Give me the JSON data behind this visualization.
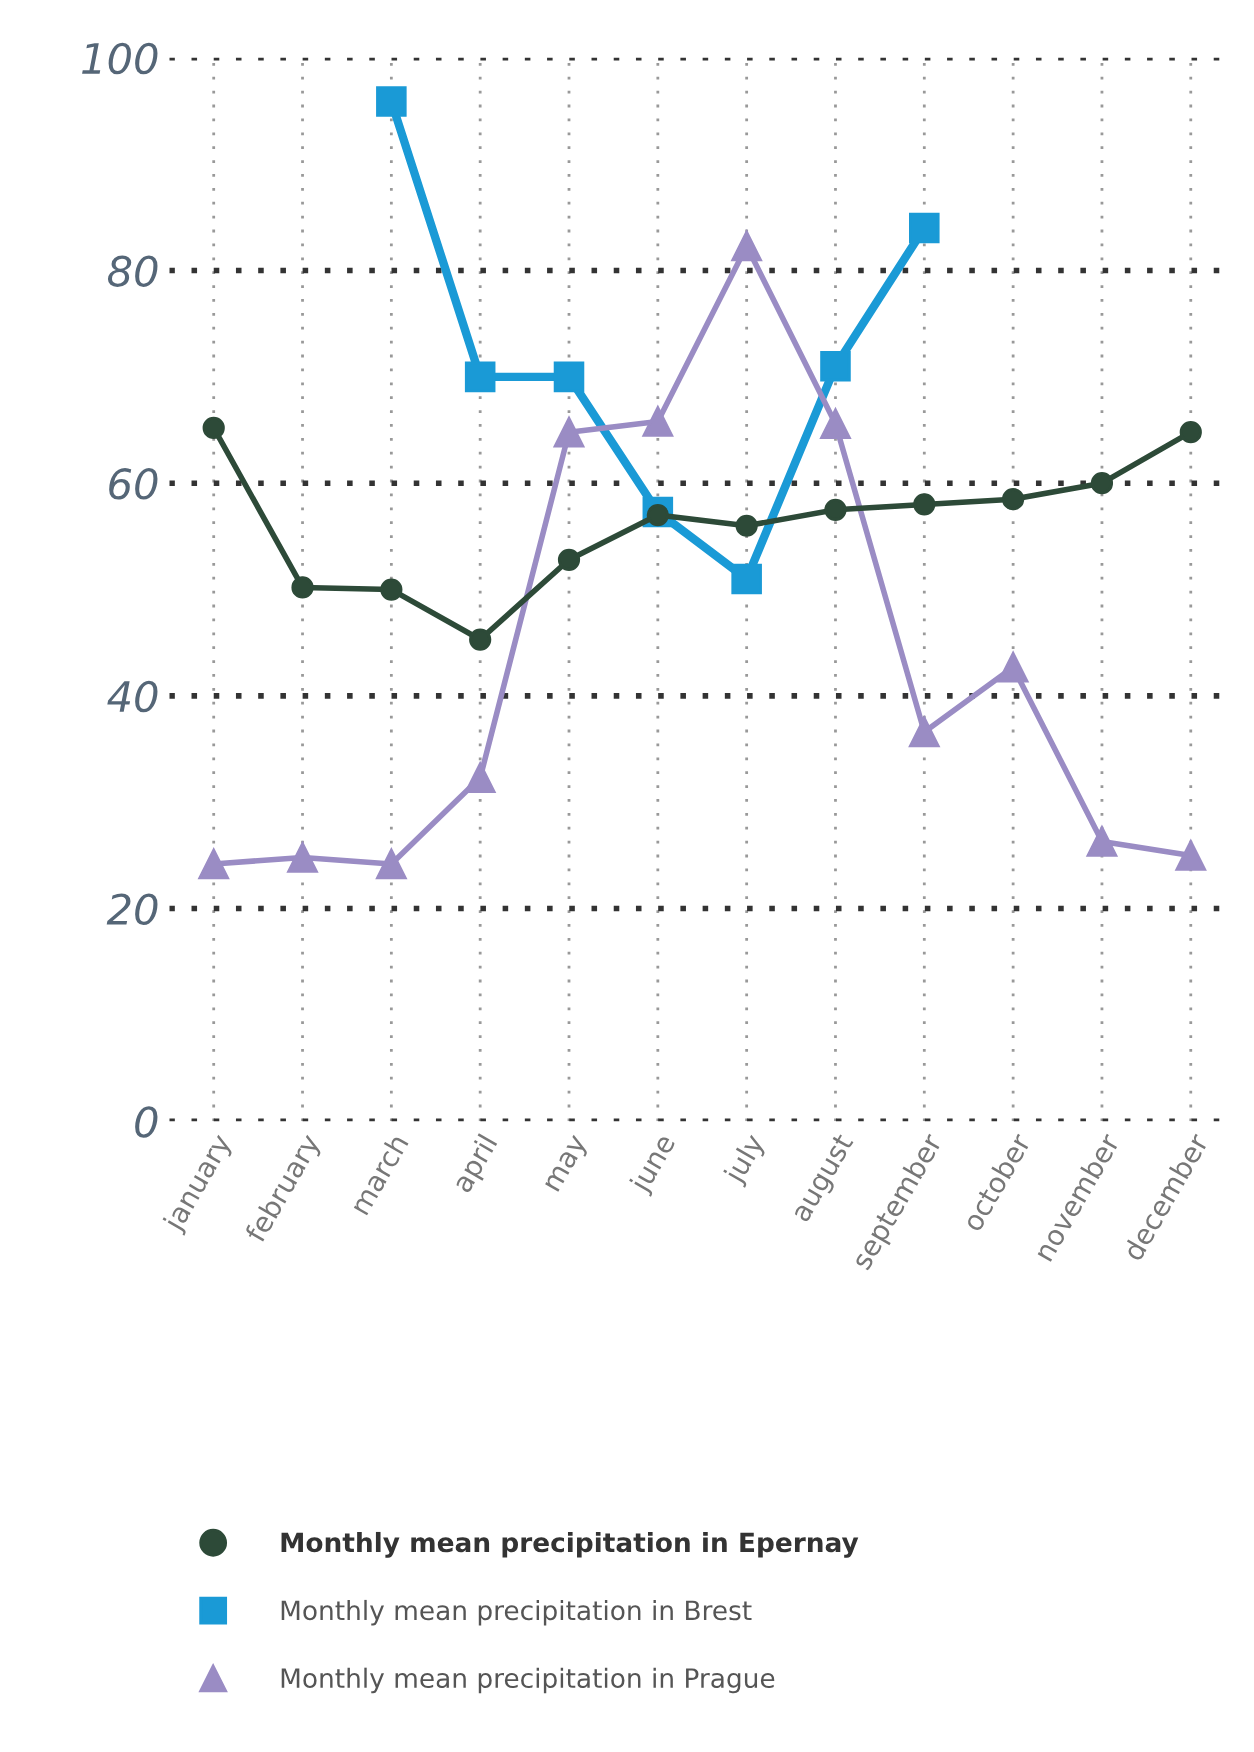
{
  "chart_data": {
    "type": "line",
    "categories": [
      "january",
      "february",
      "march",
      "april",
      "may",
      "june",
      "july",
      "august",
      "september",
      "october",
      "november",
      "december"
    ],
    "series": [
      {
        "name": "Monthly mean precipitation in Epernay",
        "color": "#2d4a38",
        "marker": "circle",
        "values": [
          65.2,
          50.2,
          50,
          45.3,
          52.8,
          57,
          56,
          57.5,
          58,
          58.5,
          60,
          64.8
        ]
      },
      {
        "name": "Monthly mean precipitation in Brest",
        "color": "#1a9ad6",
        "marker": "square",
        "values": [
          null,
          null,
          95.9,
          70,
          70,
          57.3,
          51,
          71,
          84,
          null,
          null,
          null
        ]
      },
      {
        "name": "Monthly mean precipitation in Prague",
        "color": "#9a8cc4",
        "marker": "triangle",
        "values": [
          24.2,
          24.8,
          24.2,
          32.3,
          64.8,
          65.8,
          82.3,
          65.6,
          36.6,
          42.7,
          26.3,
          25
        ]
      }
    ],
    "ylim": [
      0,
      100
    ],
    "yticks": [
      0,
      20,
      40,
      60,
      80,
      100
    ],
    "grid": true,
    "legend": "bottom"
  }
}
